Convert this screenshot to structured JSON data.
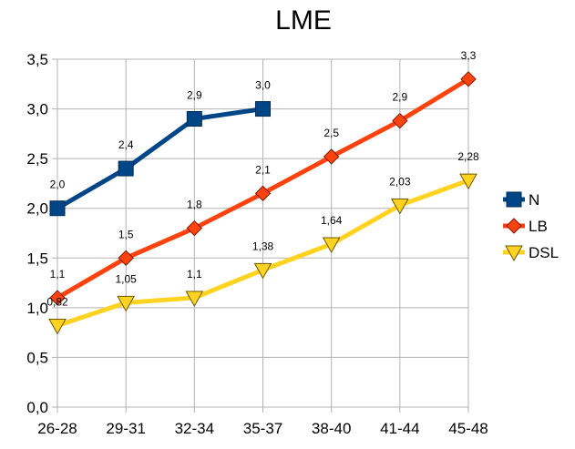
{
  "chart_data": {
    "type": "line",
    "title": "LME",
    "xlabel": "",
    "ylabel": "",
    "categories": [
      "26-28",
      "29-31",
      "32-34",
      "35-37",
      "38-40",
      "41-44",
      "45-48"
    ],
    "ylim": [
      0,
      3.5
    ],
    "yticks": [
      "0,0",
      "0,5",
      "1,0",
      "1,5",
      "2,0",
      "2,5",
      "3,0",
      "3,5"
    ],
    "grid": true,
    "legend_position": "right",
    "series": [
      {
        "name": "N",
        "color": "#004586",
        "marker": "square",
        "values": [
          2.0,
          2.4,
          2.9,
          3.0,
          null,
          null,
          null
        ],
        "labels": [
          "2,0",
          "2,4",
          "2,9",
          "3,0",
          null,
          null,
          null
        ]
      },
      {
        "name": "LB",
        "color": "#ff420e",
        "marker": "diamond",
        "values": [
          1.1,
          1.5,
          1.8,
          2.15,
          2.52,
          2.88,
          3.3
        ],
        "labels": [
          "1,1",
          "1,5",
          "1,8",
          "2,1",
          "2,5",
          "2,9",
          "3,3"
        ]
      },
      {
        "name": "DSL",
        "color": "#ffd320",
        "marker": "triangle-down",
        "values": [
          0.82,
          1.05,
          1.1,
          1.38,
          1.64,
          2.03,
          2.28
        ],
        "labels": [
          "0,82",
          "1,05",
          "1,1",
          "1,38",
          "1,64",
          "2,03",
          "2,28"
        ]
      }
    ]
  }
}
